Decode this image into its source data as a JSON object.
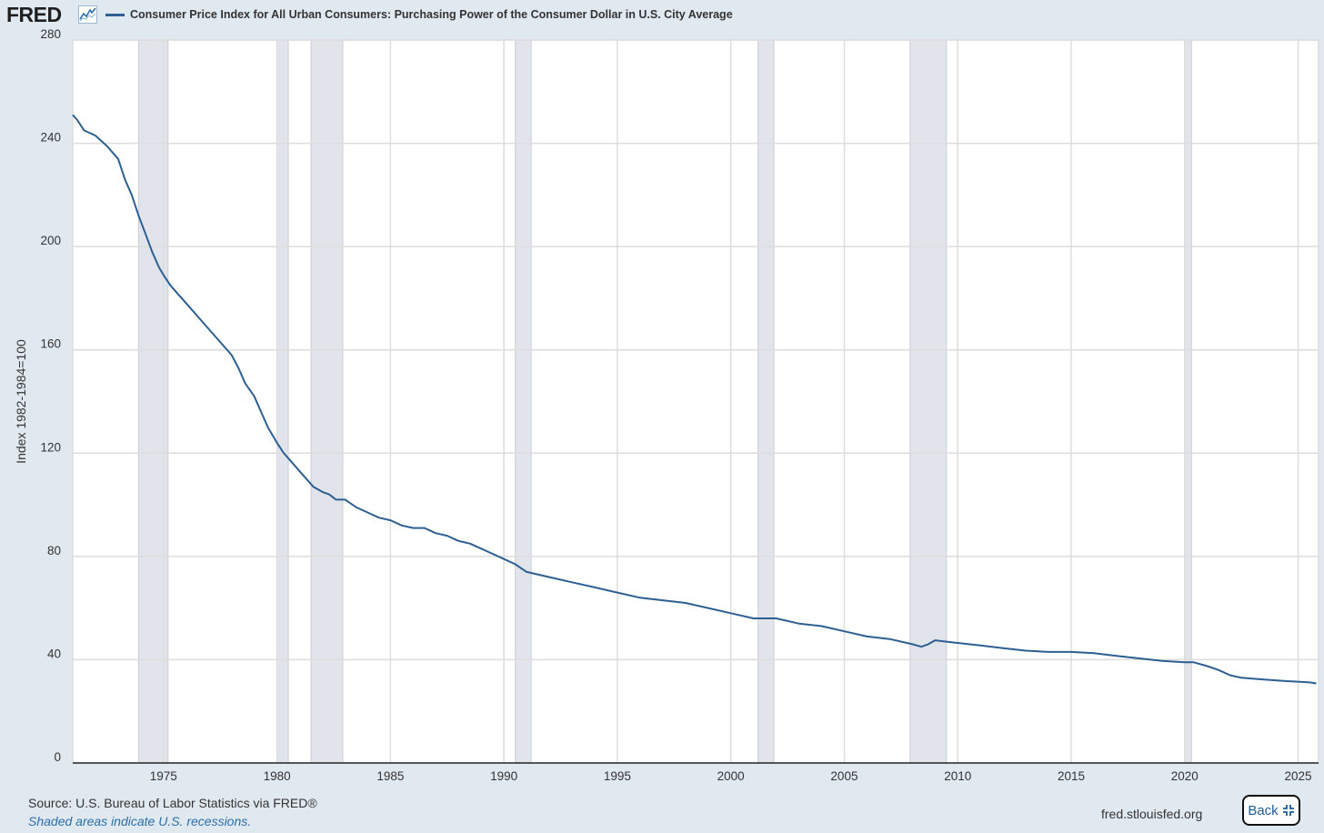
{
  "header": {
    "logo_text": "FRED",
    "graph_icon": "line-graph-icon",
    "legend_label": "Consumer Price Index for All Urban Consumers: Purchasing Power of the Consumer Dollar in U.S. City Average"
  },
  "footer": {
    "source": "Source: U.S. Bureau of Labor Statistics via FRED®",
    "recession_note": "Shaded areas indicate U.S. recessions.",
    "site": "fred.stlouisfed.org",
    "back_label": "Back",
    "back_icon": "compress-icon"
  },
  "colors": {
    "line": "#2e5f92",
    "recession": "#e1e5eb",
    "grid": "#dddddd",
    "background": "#e1e9f0",
    "plot": "#ffffff"
  },
  "chart_data": {
    "type": "line",
    "title": "",
    "xlabel": "",
    "ylabel": "Index 1982-1984=100",
    "xlim": [
      1971.0,
      2025.9
    ],
    "ylim": [
      0,
      280
    ],
    "xticks": [
      1975,
      1980,
      1985,
      1990,
      1995,
      2000,
      2005,
      2010,
      2015,
      2020,
      2025
    ],
    "yticks": [
      0,
      40,
      80,
      120,
      160,
      200,
      240,
      280
    ],
    "grid": true,
    "legend_position": "top-left",
    "recessions": [
      [
        1973.9,
        1975.2
      ],
      [
        1980.0,
        1980.5
      ],
      [
        1981.5,
        1982.9
      ],
      [
        1990.5,
        1991.2
      ],
      [
        2001.2,
        2001.9
      ],
      [
        2007.9,
        2009.5
      ],
      [
        2020.0,
        2020.3
      ]
    ],
    "series": [
      {
        "name": "Consumer Price Index for All Urban Consumers: Purchasing Power of the Consumer Dollar in U.S. City Average",
        "x": [
          1971.0,
          1971.2,
          1971.5,
          1972.0,
          1972.5,
          1973.0,
          1973.3,
          1973.6,
          1973.9,
          1974.2,
          1974.5,
          1974.8,
          1975.0,
          1975.3,
          1975.6,
          1976.0,
          1976.3,
          1976.6,
          1977.0,
          1977.3,
          1977.6,
          1978.0,
          1978.3,
          1978.6,
          1979.0,
          1979.3,
          1979.6,
          1980.0,
          1980.3,
          1980.6,
          1981.0,
          1981.3,
          1981.6,
          1982.0,
          1982.3,
          1982.6,
          1983.0,
          1983.5,
          1984.0,
          1984.5,
          1985.0,
          1985.5,
          1986.0,
          1986.5,
          1987.0,
          1987.5,
          1988.0,
          1988.5,
          1989.0,
          1989.5,
          1990.0,
          1990.5,
          1991.0,
          1992.0,
          1993.0,
          1994.0,
          1995.0,
          1996.0,
          1997.0,
          1998.0,
          1999.0,
          2000.0,
          2001.0,
          2002.0,
          2003.0,
          2004.0,
          2005.0,
          2006.0,
          2007.0,
          2008.0,
          2008.4,
          2008.7,
          2009.0,
          2009.5,
          2010.0,
          2011.0,
          2012.0,
          2013.0,
          2014.0,
          2015.0,
          2016.0,
          2017.0,
          2018.0,
          2019.0,
          2020.0,
          2020.4,
          2021.0,
          2021.5,
          2022.0,
          2022.5,
          2023.0,
          2023.5,
          2024.0,
          2024.5,
          2025.0,
          2025.5,
          2025.8
        ],
        "y": [
          251,
          249,
          245,
          243,
          239,
          234,
          226,
          220,
          212,
          205,
          198,
          192,
          189,
          185,
          182,
          178,
          175,
          172,
          168,
          165,
          162,
          158,
          153,
          147,
          142,
          136,
          130,
          124,
          120,
          117,
          113,
          110,
          107,
          105,
          104,
          102,
          102,
          99,
          97,
          95,
          94,
          92,
          91,
          91,
          89,
          88,
          86,
          85,
          83,
          81,
          79,
          77,
          74,
          72,
          70,
          68,
          66,
          64,
          63,
          62,
          60,
          58,
          56,
          56,
          54,
          53,
          51,
          49,
          48,
          46,
          45,
          46,
          47.5,
          47,
          46.5,
          45.5,
          44.5,
          43.5,
          43,
          43,
          42.5,
          41.5,
          40.5,
          39.5,
          39,
          39,
          37.5,
          36,
          34,
          33,
          32.7,
          32.3,
          32,
          31.7,
          31.5,
          31.2,
          30.8
        ]
      }
    ]
  }
}
